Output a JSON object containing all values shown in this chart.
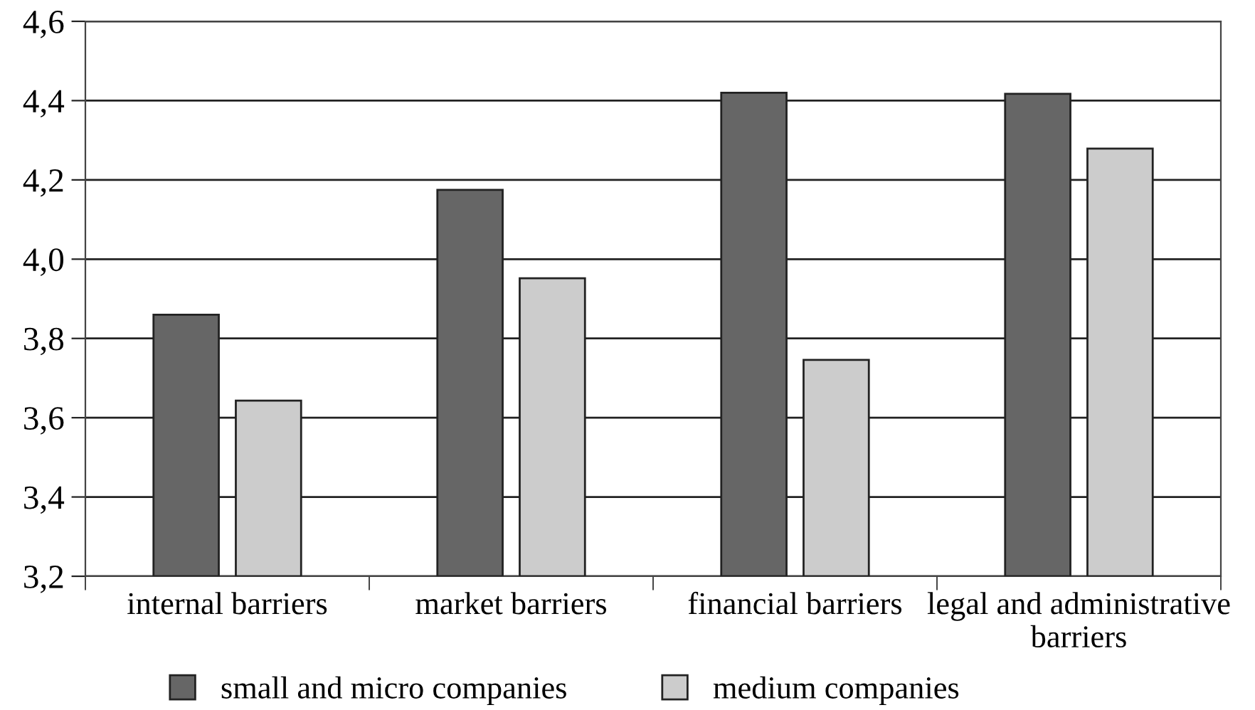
{
  "chart_data": {
    "type": "bar",
    "categories": [
      "internal barriers",
      "market barriers",
      "financial barriers",
      "legal and administrative\nbarriers"
    ],
    "series": [
      {
        "name": "small and micro companies",
        "color": "#666666",
        "values": [
          3.86,
          4.175,
          4.42,
          4.417
        ]
      },
      {
        "name": "medium companies",
        "color": "#cccccc",
        "values": [
          3.643,
          3.952,
          3.746,
          4.279
        ]
      }
    ],
    "ylim": [
      3.2,
      4.6
    ],
    "yticks": [
      {
        "value": 3.2,
        "label": "3,2"
      },
      {
        "value": 3.4,
        "label": "3,4"
      },
      {
        "value": 3.6,
        "label": "3,6"
      },
      {
        "value": 3.8,
        "label": "3,8"
      },
      {
        "value": 4.0,
        "label": "4,0"
      },
      {
        "value": 4.2,
        "label": "4,2"
      },
      {
        "value": 4.4,
        "label": "4,4"
      },
      {
        "value": 4.6,
        "label": "4,6"
      }
    ],
    "grid": "y",
    "legend": "bottom"
  }
}
